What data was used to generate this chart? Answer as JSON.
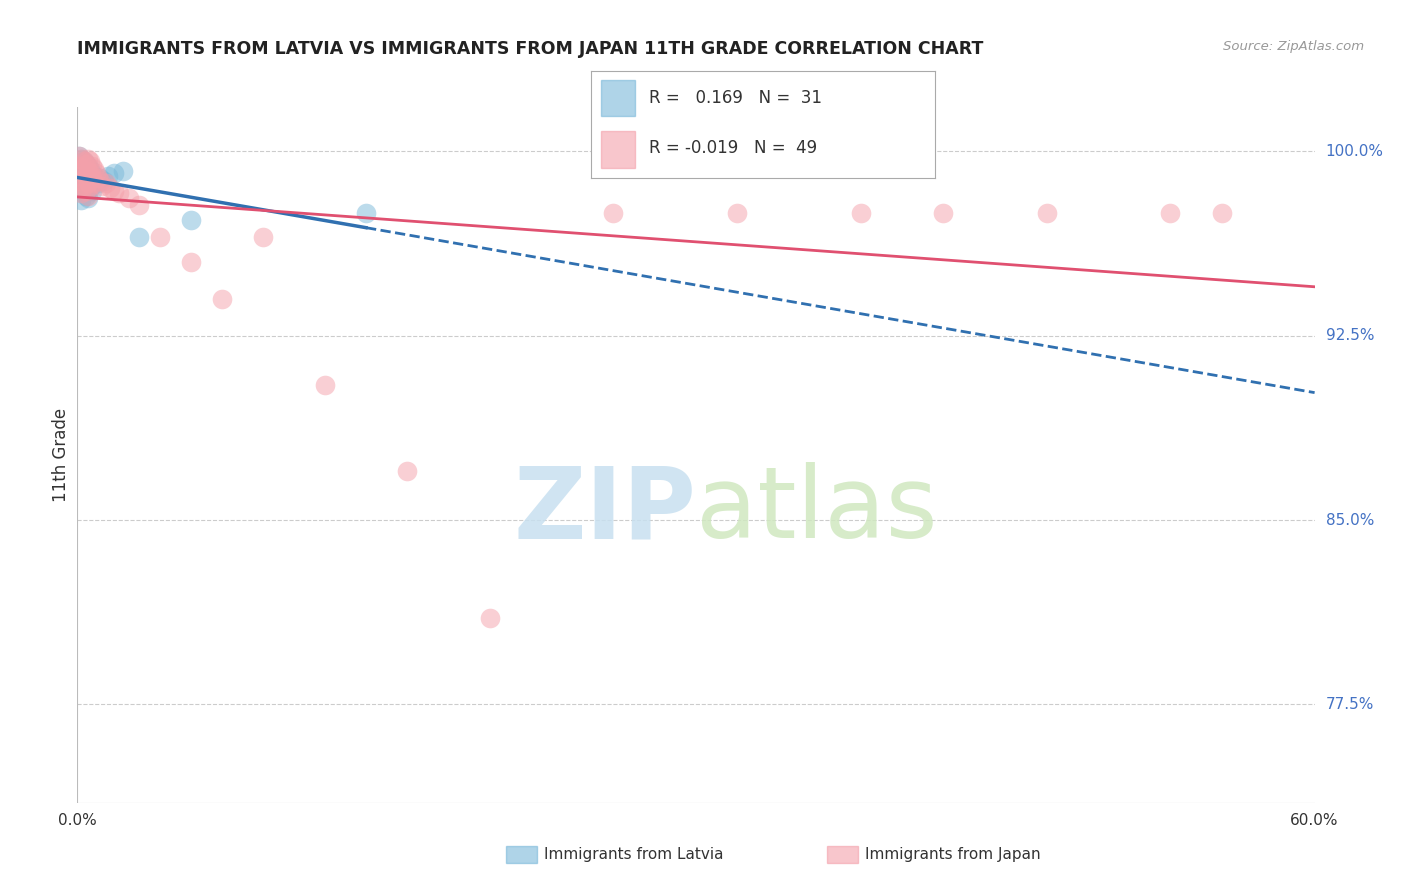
{
  "title": "IMMIGRANTS FROM LATVIA VS IMMIGRANTS FROM JAPAN 11TH GRADE CORRELATION CHART",
  "source_text": "Source: ZipAtlas.com",
  "ylabel": "11th Grade",
  "xlim": [
    0.0,
    0.6
  ],
  "ylim": [
    0.735,
    1.018
  ],
  "xtick_labels": [
    "0.0%",
    "",
    "",
    "",
    "",
    "",
    "60.0%"
  ],
  "xtick_values": [
    0.0,
    0.1,
    0.2,
    0.3,
    0.4,
    0.5,
    0.6
  ],
  "ytick_labels_right": [
    "77.5%",
    "85.0%",
    "92.5%",
    "100.0%"
  ],
  "ytick_values_right": [
    0.775,
    0.85,
    0.925,
    1.0
  ],
  "R_latvia": 0.169,
  "N_latvia": 31,
  "R_japan": -0.019,
  "N_japan": 49,
  "latvia_color": "#7ab8d9",
  "japan_color": "#f4a0aa",
  "latvia_line_color": "#3070b0",
  "japan_line_color": "#e05070",
  "background_color": "#ffffff",
  "grid_color": "#cccccc",
  "latvia_x": [
    0.001,
    0.001,
    0.001,
    0.002,
    0.002,
    0.002,
    0.002,
    0.003,
    0.003,
    0.003,
    0.004,
    0.004,
    0.004,
    0.005,
    0.005,
    0.005,
    0.006,
    0.006,
    0.007,
    0.007,
    0.008,
    0.009,
    0.01,
    0.011,
    0.013,
    0.015,
    0.018,
    0.022,
    0.03,
    0.055,
    0.14
  ],
  "latvia_y": [
    0.998,
    0.993,
    0.988,
    0.997,
    0.992,
    0.986,
    0.98,
    0.996,
    0.99,
    0.984,
    0.995,
    0.988,
    0.982,
    0.994,
    0.987,
    0.981,
    0.993,
    0.985,
    0.991,
    0.984,
    0.99,
    0.988,
    0.987,
    0.989,
    0.988,
    0.99,
    0.991,
    0.992,
    0.965,
    0.972,
    0.975
  ],
  "japan_x": [
    0.001,
    0.001,
    0.001,
    0.001,
    0.002,
    0.002,
    0.002,
    0.002,
    0.003,
    0.003,
    0.003,
    0.004,
    0.004,
    0.004,
    0.005,
    0.005,
    0.005,
    0.005,
    0.006,
    0.006,
    0.006,
    0.007,
    0.007,
    0.008,
    0.008,
    0.009,
    0.01,
    0.011,
    0.012,
    0.014,
    0.016,
    0.018,
    0.02,
    0.025,
    0.03,
    0.04,
    0.055,
    0.07,
    0.09,
    0.12,
    0.16,
    0.2,
    0.26,
    0.32,
    0.38,
    0.42,
    0.47,
    0.53,
    0.555
  ],
  "japan_y": [
    0.998,
    0.994,
    0.99,
    0.985,
    0.997,
    0.993,
    0.988,
    0.983,
    0.996,
    0.991,
    0.986,
    0.995,
    0.99,
    0.984,
    0.997,
    0.992,
    0.987,
    0.982,
    0.996,
    0.991,
    0.986,
    0.994,
    0.989,
    0.993,
    0.987,
    0.991,
    0.989,
    0.988,
    0.986,
    0.987,
    0.985,
    0.984,
    0.983,
    0.981,
    0.978,
    0.965,
    0.955,
    0.94,
    0.965,
    0.905,
    0.87,
    0.81,
    0.975,
    0.975,
    0.975,
    0.975,
    0.975,
    0.975,
    0.975
  ]
}
